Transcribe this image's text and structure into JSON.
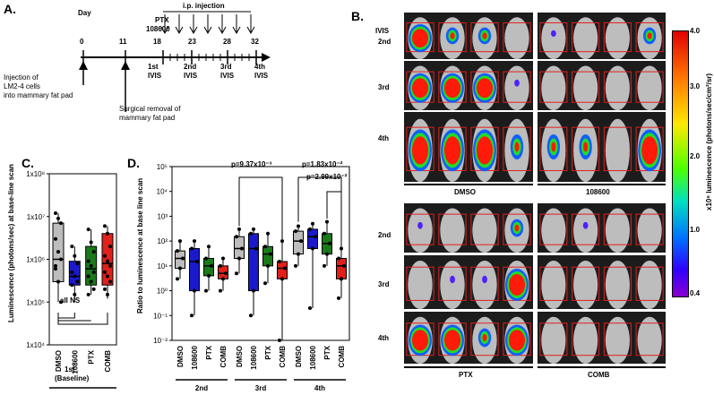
{
  "panel_a": {
    "label": "A.",
    "day_label": "Day",
    "days": [
      "0",
      "11",
      "18",
      "23",
      "28",
      "32"
    ],
    "ptx_label": "PTX",
    "compound_label": "108600",
    "ip_label": "i.p. injection",
    "scans": [
      "1st\nIVIS",
      "2nd\nIVIS",
      "3rd\nIVIS",
      "4th\nIVIS"
    ],
    "scan_labels": [
      "1st",
      "2nd",
      "3rd",
      "4th"
    ],
    "ivis": "IVIS",
    "injection_text": [
      "Injection of",
      "LM2-4 cells",
      "into mammary fat pad"
    ],
    "surgery_text": [
      "Surgical removal of",
      "mammary fat pad"
    ]
  },
  "panel_b": {
    "label": "B.",
    "ivis_label": "IVIS",
    "rows_top": [
      "2nd",
      "3rd",
      "4th"
    ],
    "rows_bottom": [
      "2nd",
      "3rd",
      "4th"
    ],
    "groups": [
      "DMSO",
      "108600",
      "PTX",
      "COMB"
    ],
    "colorbar_ticks": [
      "4.0",
      "3.0",
      "2.0",
      "1.0",
      "0.4"
    ],
    "colorbar_title": "x10⁶ luminescence (photons/sec/cm²/sr)"
  },
  "chart_data": [
    {
      "panel": "C.",
      "type": "box",
      "ylabel": "Luminescence (photons/sec) at base-line scan",
      "yscale": "log",
      "ylim": [
        10000,
        100000000
      ],
      "yticks": [
        "1x10⁸",
        "1x10⁷",
        "1x10⁶",
        "1x10⁵",
        "1x10⁴"
      ],
      "categories": [
        "DMSO",
        "108600",
        "PTX",
        "COMB"
      ],
      "colors": [
        "#bdbdbd",
        "#1a1acc",
        "#1a7a1a",
        "#e0201a"
      ],
      "boxes": [
        {
          "q1": 300000,
          "median": 1000000,
          "q3": 7000000,
          "min": 100000,
          "max": 12000000
        },
        {
          "q1": 250000,
          "median": 400000,
          "q3": 900000,
          "min": 100000,
          "max": 2000000
        },
        {
          "q1": 250000,
          "median": 600000,
          "q3": 2000000,
          "min": 150000,
          "max": 5000000
        },
        {
          "q1": 250000,
          "median": 800000,
          "q3": 4000000,
          "min": 120000,
          "max": 6000000
        }
      ],
      "points": [
        [
          12000000,
          9000000,
          7000000,
          3000000,
          1500000,
          1000000,
          600000,
          300000,
          100000,
          700000
        ],
        [
          2000000,
          1200000,
          800000,
          500000,
          400000,
          300000,
          250000,
          150000
        ],
        [
          5000000,
          2500000,
          1500000,
          900000,
          700000,
          500000,
          400000,
          300000,
          200000,
          150000
        ],
        [
          6000000,
          4000000,
          2000000,
          1200000,
          900000,
          700000,
          500000,
          400000,
          300000,
          200000,
          150000
        ]
      ],
      "annotation": "all NS",
      "xgroup": "1st",
      "xgroup_sub": "(Baseline)"
    },
    {
      "panel": "D.",
      "type": "box",
      "ylabel": "Ratio to luminescence at base line scan",
      "yscale": "log",
      "ylim": [
        0.01,
        100000
      ],
      "yticks": [
        "10⁵",
        "10⁴",
        "10³",
        "10²",
        "10¹",
        "10⁰",
        "10⁻¹",
        "10⁻²"
      ],
      "timepoints": [
        "2nd",
        "3rd",
        "4th"
      ],
      "categories": [
        "DMSO",
        "108600",
        "PTX",
        "COMB"
      ],
      "colors": [
        "#bdbdbd",
        "#1a1acc",
        "#1a7a1a",
        "#e0201a"
      ],
      "boxes": [
        {
          "q1": 8,
          "median": 20,
          "q3": 40,
          "min": 3,
          "max": 100
        },
        {
          "q1": 1,
          "median": 15,
          "q3": 50,
          "min": 0.1,
          "max": 100
        },
        {
          "q1": 4,
          "median": 10,
          "q3": 20,
          "min": 1,
          "max": 60
        },
        {
          "q1": 3,
          "median": 5,
          "q3": 10,
          "min": 1,
          "max": 20
        },
        {
          "q1": 20,
          "median": 50,
          "q3": 150,
          "min": 5,
          "max": 300
        },
        {
          "q1": 1,
          "median": 50,
          "q3": 200,
          "min": 0.1,
          "max": 300
        },
        {
          "q1": 10,
          "median": 30,
          "q3": 60,
          "min": 2,
          "max": 200
        },
        {
          "q1": 3,
          "median": 8,
          "q3": 15,
          "min": 0.01,
          "max": 100
        },
        {
          "q1": 30,
          "median": 100,
          "q3": 250,
          "min": 10,
          "max": 400
        },
        {
          "q1": 50,
          "median": 150,
          "q3": 300,
          "min": 0.2,
          "max": 500
        },
        {
          "q1": 30,
          "median": 80,
          "q3": 200,
          "min": 10,
          "max": 600
        },
        {
          "q1": 3,
          "median": 10,
          "q3": 20,
          "min": 0.5,
          "max": 50
        }
      ],
      "annotations": [
        "p=9.37x10⁻³",
        "p=1.83x10⁻²",
        "p=2.99x10⁻²"
      ]
    }
  ]
}
